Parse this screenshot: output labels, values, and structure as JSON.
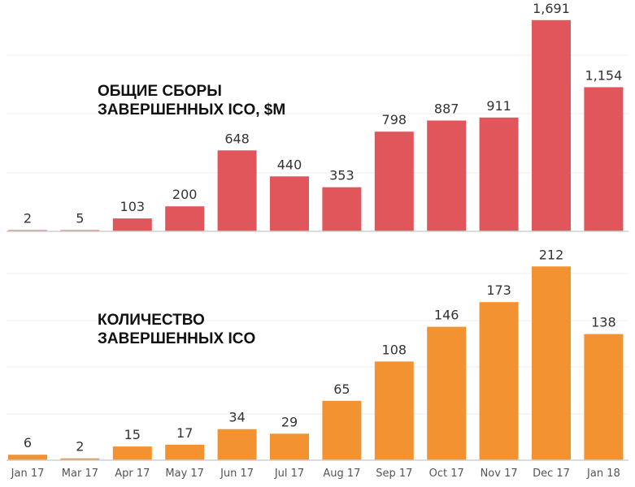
{
  "chart_data": [
    {
      "type": "bar",
      "title": [
        "ОБЩИЕ СБОРЫ",
        "ЗАВЕРШЕННЫХ ICO, $M"
      ],
      "categories": [
        "Jan 17",
        "Mar 17",
        "Apr 17",
        "May 17",
        "Jun 17",
        "Jul 17",
        "Aug 17",
        "Sep 17",
        "Oct 17",
        "Nov 17",
        "Dec 17",
        "Jan 18"
      ],
      "values": [
        2,
        5,
        103,
        200,
        648,
        440,
        353,
        798,
        887,
        911,
        1691,
        1154
      ],
      "value_labels": [
        "2",
        "5",
        "103",
        "200",
        "648",
        "440",
        "353",
        "798",
        "887",
        "911",
        "1,691",
        "1,154"
      ],
      "ylim": [
        0,
        1800
      ],
      "grid": true,
      "color": "#e0565b"
    },
    {
      "type": "bar",
      "title": [
        "КОЛИЧЕСТВО",
        "ЗАВЕРШЕННЫХ ICO"
      ],
      "categories": [
        "Jan 17",
        "Mar 17",
        "Apr 17",
        "May 17",
        "Jun 17",
        "Jul 17",
        "Aug 17",
        "Sep 17",
        "Oct 17",
        "Nov 17",
        "Dec 17",
        "Jan 18"
      ],
      "values": [
        6,
        2,
        15,
        17,
        34,
        29,
        65,
        108,
        146,
        173,
        212,
        138
      ],
      "value_labels": [
        "6",
        "2",
        "15",
        "17",
        "34",
        "29",
        "65",
        "108",
        "146",
        "173",
        "212",
        "138"
      ],
      "ylim": [
        0,
        230
      ],
      "grid": true,
      "color": "#f39230"
    }
  ]
}
